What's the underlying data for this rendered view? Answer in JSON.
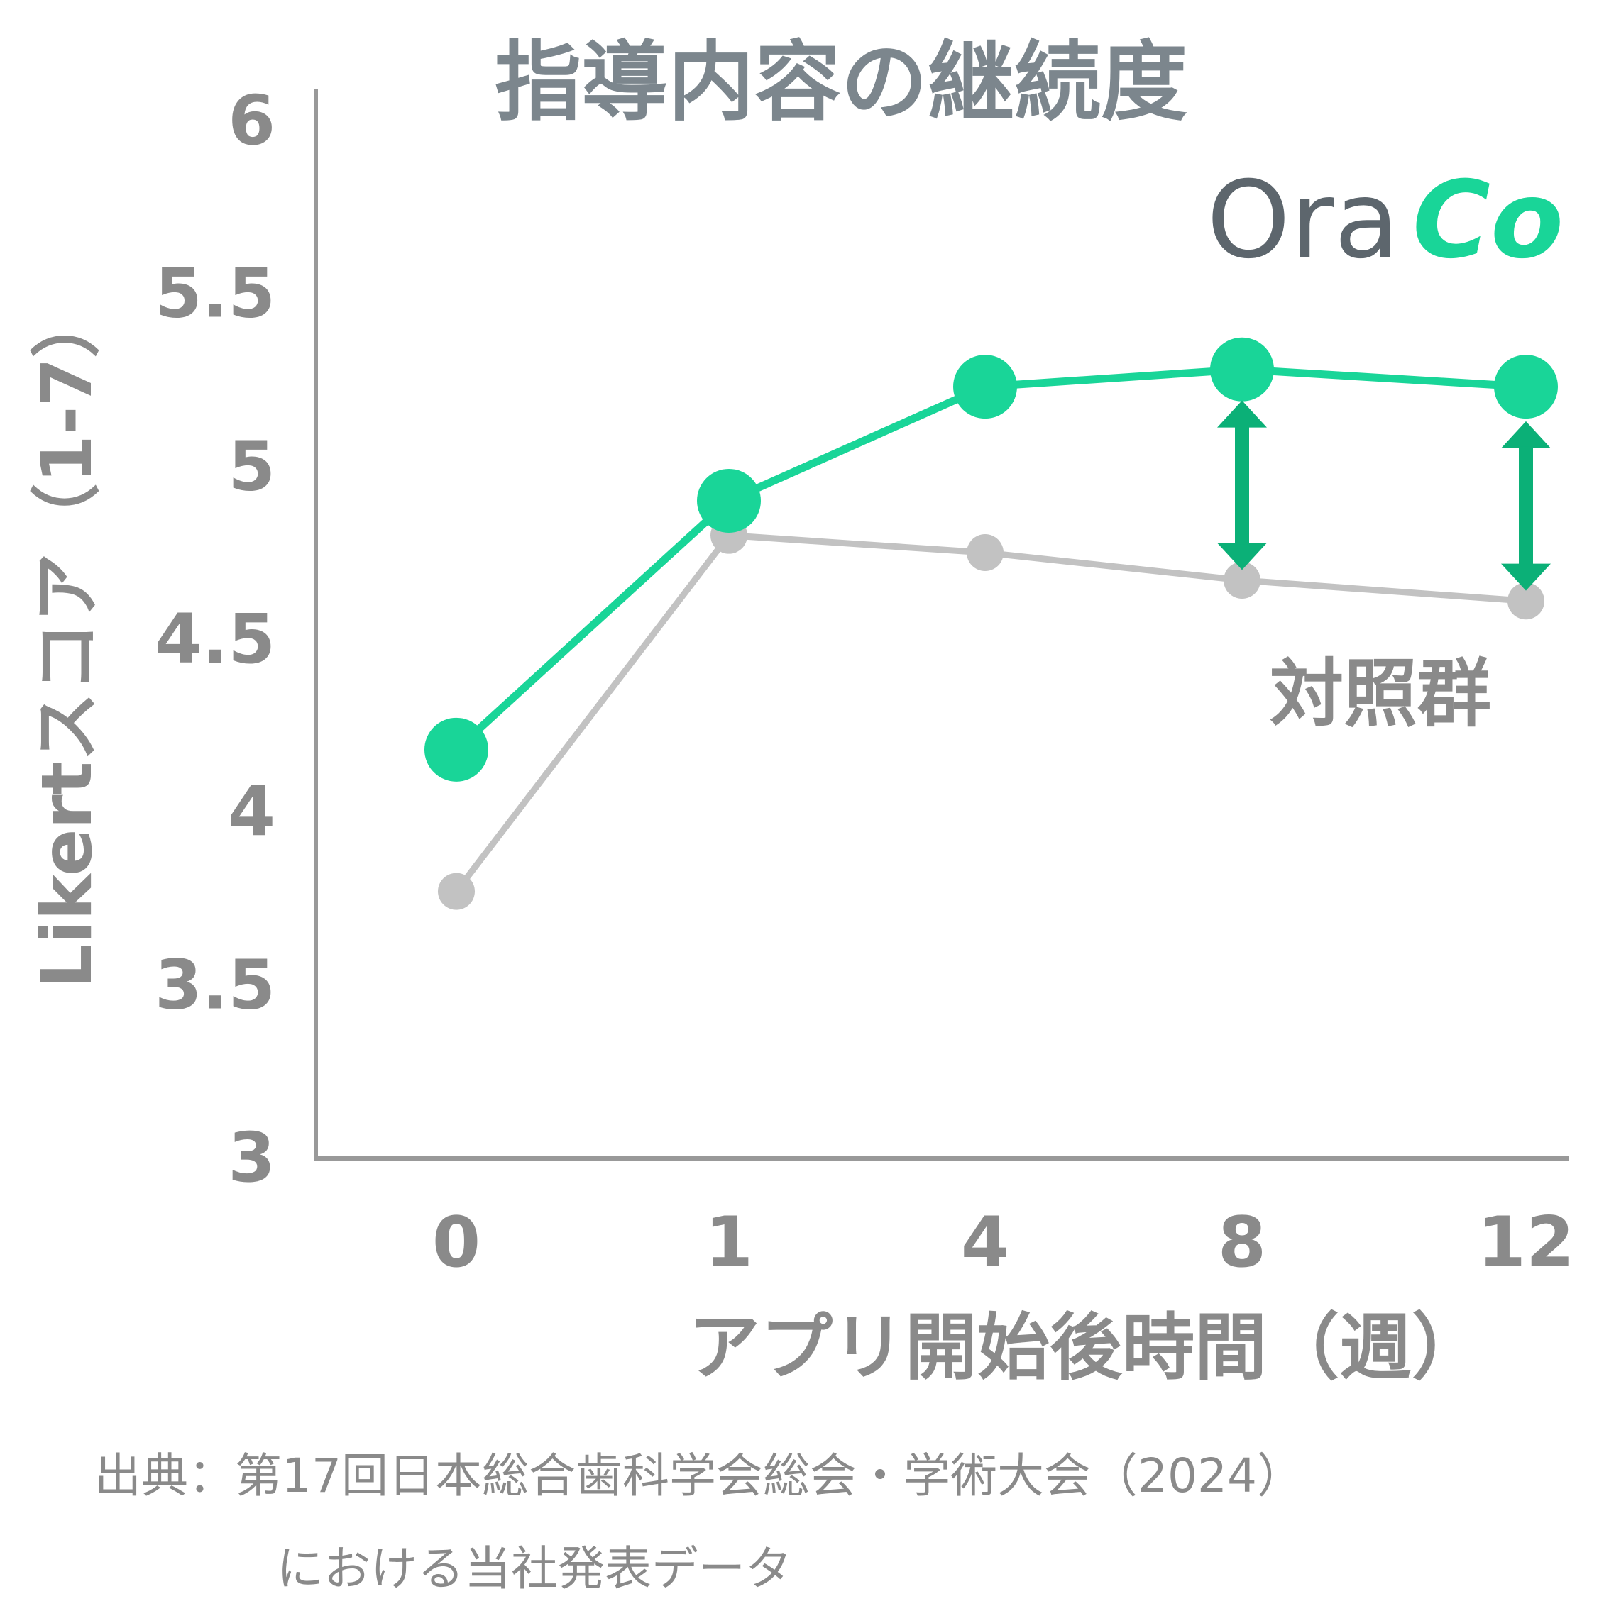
{
  "colors": {
    "primary": "#19d598",
    "control": "#c2c2c2",
    "arrow": "#0bb077",
    "text": "#8a8a8a",
    "title": "#7c868d",
    "axis": "#999999",
    "logo_dark": "#5d666d"
  },
  "logo": {
    "text_dark": "Ora",
    "text_accent": "Co"
  },
  "chart_data": {
    "type": "line",
    "title": "指導内容の継続度",
    "xlabel": "アプリ開始後時間（週）",
    "ylabel": "Likertスコア（1-7）",
    "categories": [
      "0",
      "1",
      "4",
      "8",
      "12"
    ],
    "ylim": [
      3,
      6
    ],
    "yticks": [
      "3",
      "3.5",
      "4",
      "4.5",
      "5",
      "5.5",
      "6"
    ],
    "grid": false,
    "series": [
      {
        "name": "",
        "color": "#19d598",
        "values": [
          4.17,
          4.89,
          5.22,
          5.27,
          5.22
        ]
      },
      {
        "name": "対照群",
        "color": "#c2c2c2",
        "values": [
          3.76,
          4.79,
          4.74,
          4.66,
          4.6
        ]
      }
    ],
    "annotations": [
      {
        "type": "double-arrow",
        "category": "8",
        "from": 4.69,
        "to": 5.18
      },
      {
        "type": "double-arrow",
        "category": "12",
        "from": 4.63,
        "to": 5.12
      }
    ]
  },
  "source": {
    "line1": "出典：第17回日本総合歯科学会総会・学術大会（2024）",
    "line2": "における当社発表データ"
  }
}
